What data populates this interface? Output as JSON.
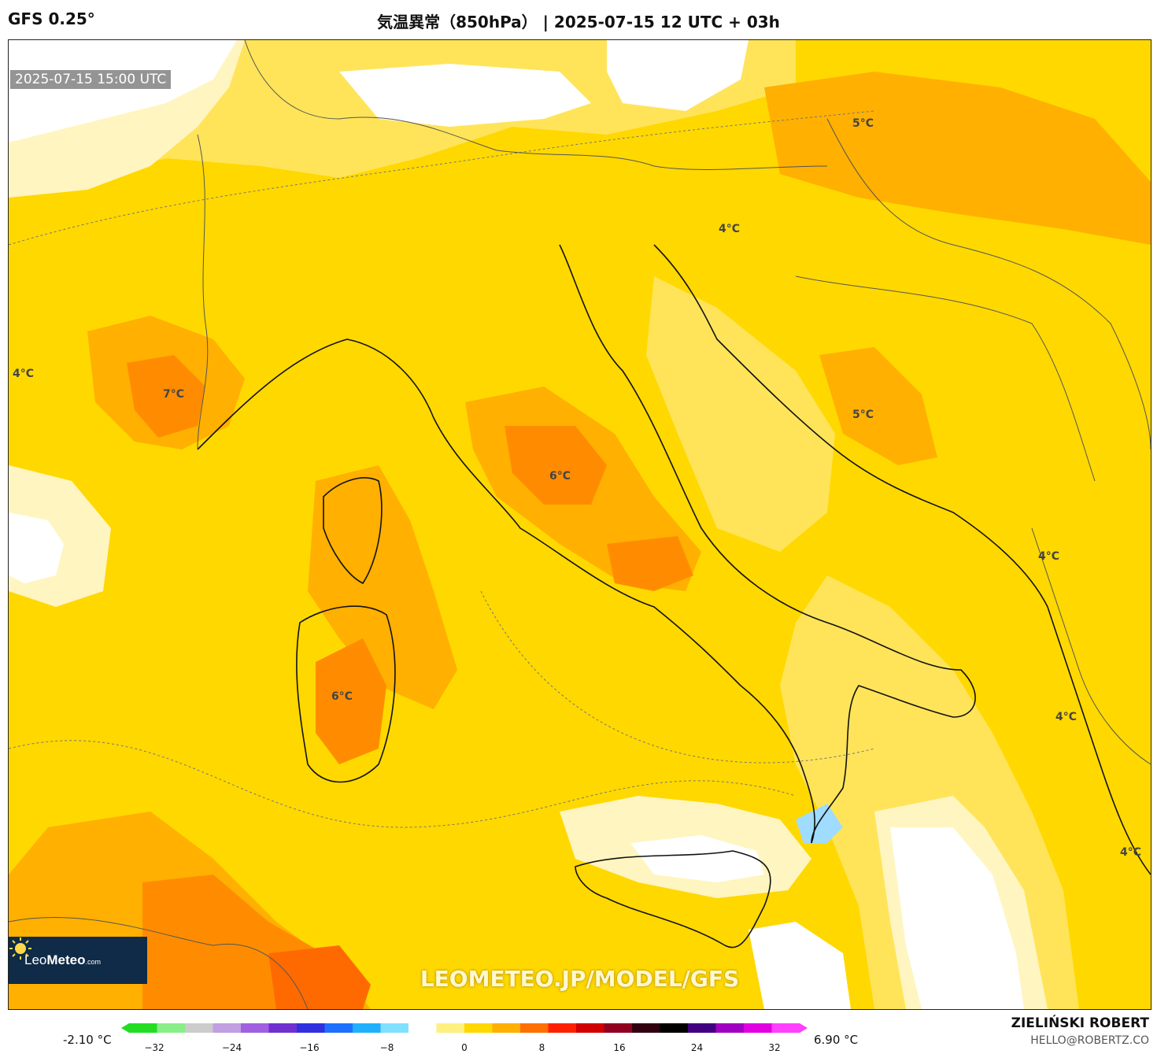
{
  "header": {
    "model": "GFS 0.25°",
    "title": "気温異常（850hPa） | 2025-07-15 12 UTC + 03h"
  },
  "map": {
    "timestamp": "2025-07-15 15:00 UTC",
    "watermark": "LEOMETEO.JP/MODEL/GFS",
    "logo": {
      "name_light": "Leo",
      "name_bold": "Meteo",
      "domain": ".com"
    },
    "labels": [
      {
        "id": "slovenia",
        "text": "5°C"
      },
      {
        "id": "istria",
        "text": "4°C"
      },
      {
        "id": "west",
        "text": "4°C"
      },
      {
        "id": "provence",
        "text": "7°C"
      },
      {
        "id": "dalmatia",
        "text": "5°C"
      },
      {
        "id": "central-italy",
        "text": "6°C"
      },
      {
        "id": "sardinia",
        "text": "6°C"
      },
      {
        "id": "albania",
        "text": "4°C"
      },
      {
        "id": "greece-west",
        "text": "4°C"
      },
      {
        "id": "greece-south",
        "text": "4°C"
      }
    ],
    "colors": {
      "base": "#ffd800",
      "light": "#ffe45a",
      "pale": "#fff5c0",
      "orange": "#ffb000",
      "dark_orange": "#ff8c00",
      "deep_orange": "#ff6a00",
      "white": "#ffffff",
      "light_blue": "#9fdcff",
      "coast": "#111111",
      "border": "#555555"
    }
  },
  "colorbar": {
    "min_value": "-2.10 °C",
    "max_value": "6.90 °C",
    "ticks": [
      "−32",
      "−24",
      "−16",
      "−8",
      "0",
      "8",
      "16",
      "24",
      "32"
    ],
    "colors": [
      "#22dd22",
      "#88ee88",
      "#cccccc",
      "#c0a0e0",
      "#a060e0",
      "#7030d0",
      "#3030e0",
      "#2070ff",
      "#20b0ff",
      "#80e0ff",
      "#ffffff",
      "#fff080",
      "#ffd800",
      "#ffb000",
      "#ff7000",
      "#ff2000",
      "#d00000",
      "#900020",
      "#300010",
      "#000000",
      "#400080",
      "#a000c0",
      "#e000e0",
      "#ff40ff"
    ]
  },
  "footer": {
    "author": "ZIELIŃSKI ROBERT",
    "email": "HELLO@ROBERTZ.CO"
  }
}
